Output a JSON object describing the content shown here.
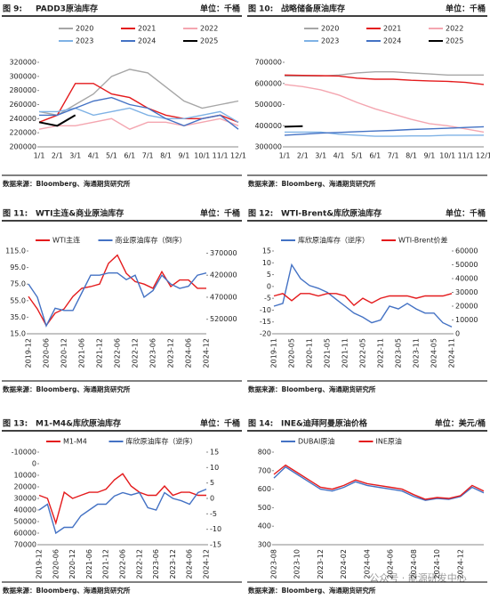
{
  "watermark": "公众号 · 能源研发中心",
  "chart_data": [
    {
      "type": "line",
      "figure_label": "图 9:",
      "title": "PADD3原油库存",
      "unit": "单位：千桶",
      "source": "数据来源：Bloomberg、海通期货研究所",
      "categories": [
        "1/1",
        "2/1",
        "3/1",
        "4/1",
        "5/1",
        "6/1",
        "7/1",
        "8/1",
        "9/1",
        "10/1",
        "11/1",
        "12/1"
      ],
      "ylim": [
        200000,
        320000
      ],
      "yticks": [
        200000,
        220000,
        240000,
        260000,
        280000,
        300000,
        320000
      ],
      "series": [
        {
          "name": "2020",
          "color": "#a6a6a6",
          "values": [
            250000,
            245000,
            260000,
            275000,
            300000,
            310000,
            305000,
            285000,
            265000,
            255000,
            260000,
            265000
          ]
        },
        {
          "name": "2021",
          "color": "#e41a1c",
          "values": [
            235000,
            245000,
            290000,
            290000,
            275000,
            270000,
            255000,
            245000,
            240000,
            240000,
            245000,
            235000
          ]
        },
        {
          "name": "2022",
          "color": "#f4a6b0",
          "values": [
            225000,
            230000,
            230000,
            235000,
            240000,
            225000,
            235000,
            235000,
            230000,
            235000,
            240000,
            230000
          ]
        },
        {
          "name": "2023",
          "color": "#7fb2e5",
          "values": [
            250000,
            250000,
            255000,
            245000,
            250000,
            255000,
            245000,
            240000,
            240000,
            245000,
            250000,
            235000
          ]
        },
        {
          "name": "2024",
          "color": "#4472c4",
          "values": [
            245000,
            245000,
            255000,
            265000,
            270000,
            260000,
            255000,
            240000,
            230000,
            240000,
            245000,
            225000
          ]
        },
        {
          "name": "2025",
          "color": "#000000",
          "values": [
            235000,
            230000,
            245000,
            null,
            null,
            null,
            null,
            null,
            null,
            null,
            null,
            null
          ]
        }
      ]
    },
    {
      "type": "line",
      "figure_label": "图 10:",
      "title": "战略储备原油库存",
      "unit": "单位：千桶",
      "source": "数据来源：Bloomberg、海通期货研究所",
      "categories": [
        "1/1",
        "2/1",
        "3/1",
        "4/1",
        "5/1",
        "6/1",
        "7/1",
        "8/1",
        "9/1",
        "10/1",
        "11/1",
        "12/1"
      ],
      "ylim": [
        300000,
        700000
      ],
      "yticks": [
        300000,
        400000,
        500000,
        600000,
        700000
      ],
      "series": [
        {
          "name": "2020",
          "color": "#a6a6a6",
          "values": [
            635000,
            635000,
            635000,
            640000,
            650000,
            655000,
            655000,
            650000,
            645000,
            640000,
            640000,
            640000
          ]
        },
        {
          "name": "2021",
          "color": "#e41a1c",
          "values": [
            640000,
            638000,
            637000,
            635000,
            625000,
            620000,
            620000,
            615000,
            612000,
            610000,
            605000,
            595000
          ]
        },
        {
          "name": "2022",
          "color": "#f4a6b0",
          "values": [
            595000,
            585000,
            570000,
            545000,
            510000,
            480000,
            455000,
            430000,
            410000,
            400000,
            385000,
            370000
          ]
        },
        {
          "name": "2023",
          "color": "#7fb2e5",
          "values": [
            370000,
            370000,
            370000,
            360000,
            355000,
            350000,
            350000,
            352000,
            352000,
            355000,
            355000,
            355000
          ]
        },
        {
          "name": "2024",
          "color": "#4472c4",
          "values": [
            355000,
            360000,
            365000,
            368000,
            372000,
            375000,
            378000,
            382000,
            385000,
            388000,
            392000,
            395000
          ]
        },
        {
          "name": "2025",
          "color": "#000000",
          "values": [
            395000,
            398000,
            null,
            null,
            null,
            null,
            null,
            null,
            null,
            null,
            null,
            null
          ]
        }
      ]
    },
    {
      "type": "line",
      "figure_label": "图 11:",
      "title": "WTI主连&商业原油库存",
      "unit": "单位：千桶",
      "source": "数据来源：Bloomberg、海通期货研究所",
      "categories": [
        "2019-12",
        null,
        "2020-06",
        null,
        "2020-12",
        null,
        "2021-06",
        null,
        "2021-12",
        null,
        "2022-06",
        null,
        "2022-12",
        null,
        "2023-06",
        null,
        "2023-12",
        null,
        "2024-06",
        null,
        "2024-12"
      ],
      "ylim": [
        15,
        115
      ],
      "yticks": [
        {
          "value": 15,
          "label": "15.0"
        },
        {
          "value": 35,
          "label": "35.0"
        },
        {
          "value": 55,
          "label": "55.0"
        },
        {
          "value": 75,
          "label": "75.0"
        },
        {
          "value": 95,
          "label": "95.0"
        },
        {
          "value": 115,
          "label": "115.0"
        }
      ],
      "y2lim": [
        553000,
        365000
      ],
      "y2ticks": [
        370000,
        420000,
        470000,
        520000
      ],
      "series": [
        {
          "name": "WTI主连",
          "color": "#e41a1c",
          "values": [
            60,
            45,
            25,
            40,
            45,
            60,
            70,
            72,
            75,
            100,
            110,
            88,
            78,
            75,
            70,
            90,
            72,
            80,
            80,
            70,
            70
          ]
        },
        {
          "name": "商业原油库存（倒序）",
          "color": "#4472c4",
          "axis": "y2",
          "values": [
            440000,
            470000,
            535000,
            495000,
            500000,
            500000,
            460000,
            420000,
            420000,
            415000,
            415000,
            430000,
            420000,
            470000,
            455000,
            420000,
            440000,
            450000,
            445000,
            420000,
            415000
          ]
        }
      ]
    },
    {
      "type": "line",
      "figure_label": "图 12:",
      "title": "WTI-Brent&库欣原油库存",
      "unit": "单位：千桶",
      "source": "数据来源：Bloomberg、海通期货研究所",
      "categories": [
        "2019-11",
        null,
        "2020-05",
        null,
        "2020-11",
        null,
        "2021-05",
        null,
        "2021-11",
        null,
        "2022-05",
        null,
        "2022-11",
        null,
        "2023-05",
        null,
        "2023-11",
        null,
        "2024-05",
        null,
        "2024-11"
      ],
      "ylim": [
        -20,
        15
      ],
      "yticks": [
        -20,
        -15,
        -10,
        -5,
        0,
        5,
        10,
        15
      ],
      "y2lim": [
        0,
        60000
      ],
      "y2ticks": [
        0,
        10000,
        20000,
        30000,
        40000,
        50000,
        60000
      ],
      "series": [
        {
          "name": "库欣原油库存（逆序）",
          "color": "#4472c4",
          "axis": "y2",
          "values": [
            20000,
            22000,
            50000,
            40000,
            35000,
            33000,
            30000,
            25000,
            20000,
            15000,
            12000,
            8000,
            10000,
            20000,
            18000,
            22000,
            18000,
            15000,
            15000,
            8000,
            5000
          ]
        },
        {
          "name": "WTI-Brent价差",
          "color": "#e41a1c",
          "values": [
            -4,
            -3,
            -6,
            -3,
            -3,
            -4,
            -3,
            -3,
            -4,
            -8,
            -5,
            -7,
            -5,
            -4,
            -4,
            -4,
            -5,
            -4,
            -4,
            -4,
            -3
          ]
        }
      ]
    },
    {
      "type": "line",
      "figure_label": "图 13:",
      "title": "M1-M4&库欣原油库存",
      "unit": "单位：千桶",
      "source": "数据来源：Bloomberg、海通期货研究所",
      "categories": [
        "2019-12",
        null,
        "2020-06",
        null,
        "2020-12",
        null,
        "2021-06",
        null,
        "2021-12",
        null,
        "2022-06",
        null,
        "2022-12",
        null,
        "2023-06",
        null,
        "2023-12",
        null,
        "2024-06",
        null,
        "2024-12"
      ],
      "ylim": [
        70000,
        -10000
      ],
      "yticks": [
        -10000,
        0,
        10000,
        20000,
        30000,
        40000,
        50000,
        60000,
        70000
      ],
      "y2lim": [
        -15,
        15
      ],
      "y2ticks": [
        -15,
        -10,
        -5,
        0,
        5,
        10,
        15
      ],
      "series": [
        {
          "name": "M1-M4",
          "color": "#e41a1c",
          "axis": "y2",
          "values": [
            1,
            0,
            -8,
            2,
            0,
            1,
            2,
            2,
            3,
            6,
            8,
            4,
            2,
            1,
            1,
            4,
            1,
            2,
            2,
            1,
            1
          ]
        },
        {
          "name": "库欣原油库存（逆序）",
          "color": "#4472c4",
          "values": [
            40000,
            35000,
            60000,
            55000,
            55000,
            45000,
            40000,
            35000,
            35000,
            28000,
            25000,
            27000,
            25000,
            38000,
            40000,
            25000,
            30000,
            32000,
            35000,
            25000,
            22000
          ]
        }
      ]
    },
    {
      "type": "line",
      "figure_label": "图 14:",
      "title": "INE&迪拜阿曼原油价格",
      "unit": "单位：美元/桶",
      "source": "数据来源：Bloomberg、海通期货研究所",
      "categories": [
        "2023-08",
        null,
        "2023-10",
        null,
        "2023-12",
        null,
        "2024-02",
        null,
        "2024-04",
        null,
        "2024-06",
        null,
        "2024-08",
        null,
        "2024-10",
        null,
        "2024-12",
        null,
        null
      ],
      "ylim": [
        300,
        800
      ],
      "yticks": [
        300,
        400,
        500,
        600,
        700,
        800
      ],
      "series": [
        {
          "name": "DUBAI原油",
          "color": "#4472c4",
          "values": [
            660,
            720,
            680,
            640,
            600,
            590,
            610,
            640,
            620,
            610,
            600,
            590,
            560,
            540,
            550,
            545,
            560,
            610,
            580
          ]
        },
        {
          "name": "INE原油",
          "color": "#e41a1c",
          "values": [
            680,
            730,
            690,
            650,
            610,
            600,
            620,
            650,
            630,
            620,
            610,
            600,
            570,
            545,
            555,
            550,
            565,
            620,
            590
          ]
        }
      ]
    }
  ]
}
